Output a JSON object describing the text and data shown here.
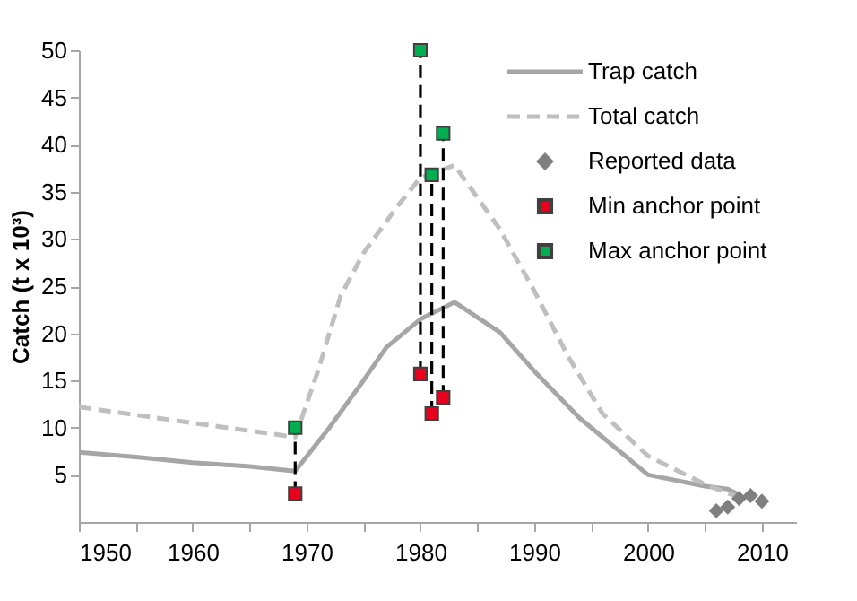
{
  "chart_data": {
    "type": "line",
    "ylabel": "Catch (t x 10³)",
    "xlim": [
      1950,
      2013
    ],
    "ylim": [
      0,
      50
    ],
    "xticks": [
      1950,
      {
        "value": 1955,
        "label": null
      },
      1960,
      {
        "value": 1965,
        "label": null
      },
      1970,
      {
        "value": 1975,
        "label": null
      },
      1980,
      {
        "value": 1985,
        "label": null
      },
      1990,
      {
        "value": 1995,
        "label": null
      },
      2000,
      {
        "value": 2005,
        "label": null
      },
      2010
    ],
    "yticks": [
      5,
      10,
      15,
      20,
      25,
      30,
      35,
      40,
      45,
      50
    ],
    "grid": false,
    "legend": "top right",
    "series": [
      {
        "name": "Trap catch",
        "color": "#a6a6a6",
        "line_style": "solid",
        "marker": "none",
        "x": [
          1950,
          1955,
          1960,
          1965,
          1969,
          1972,
          1975,
          1977,
          1980,
          1983,
          1987,
          1990,
          1994,
          2000,
          2005,
          2007,
          2008
        ],
        "values": [
          7.4,
          6.9,
          6.3,
          5.9,
          5.4,
          10,
          15,
          18.5,
          21.5,
          23.3,
          20.1,
          16,
          11,
          5,
          3.8,
          3.5,
          2.9
        ]
      },
      {
        "name": "Total catch",
        "color": "#bfbfbf",
        "line_style": "dashed",
        "marker": "none",
        "x": [
          1950,
          1960,
          1969,
          1971,
          1973,
          1975,
          1978,
          1980,
          1983,
          1987,
          1990,
          1993,
          1996,
          2000,
          2005,
          2008
        ],
        "values": [
          12.2,
          10.5,
          9,
          16,
          24,
          28.5,
          33.5,
          36.5,
          37.8,
          31,
          24.5,
          17.5,
          11.5,
          7,
          4,
          2.6
        ]
      },
      {
        "color": "#000000",
        "line_style": "dashed",
        "marker": "none",
        "x": [
          1969,
          1969
        ],
        "values": [
          3,
          10
        ]
      },
      {
        "color": "#000000",
        "line_style": "dashed",
        "marker": "none",
        "x": [
          1980,
          1980
        ],
        "values": [
          15.7,
          50
        ]
      },
      {
        "color": "#000000",
        "line_style": "dashed",
        "marker": "none",
        "x": [
          1981,
          1981
        ],
        "values": [
          11.5,
          36.8
        ]
      },
      {
        "color": "#000000",
        "line_style": "dashed",
        "marker": "none",
        "x": [
          1982,
          1982
        ],
        "values": [
          13.2,
          41.2
        ]
      },
      {
        "name": "Reported data",
        "type": "scatter",
        "color": "#7f7f7f",
        "marker": "diamond",
        "x": [
          2006,
          2007,
          2008,
          2009,
          2010
        ],
        "values": [
          1.2,
          1.6,
          2.5,
          2.8,
          2.2
        ]
      },
      {
        "name": "Min anchor point",
        "type": "scatter",
        "color": "#e8001c",
        "marker": "square",
        "x": [
          1969,
          1980,
          1981,
          1982
        ],
        "values": [
          3,
          15.7,
          11.5,
          13.2
        ]
      },
      {
        "name": "Max anchor point",
        "type": "scatter",
        "color": "#00b050",
        "marker": "square",
        "x": [
          1969,
          1980,
          1981,
          1982
        ],
        "values": [
          10,
          50,
          36.8,
          41.2
        ]
      }
    ]
  }
}
